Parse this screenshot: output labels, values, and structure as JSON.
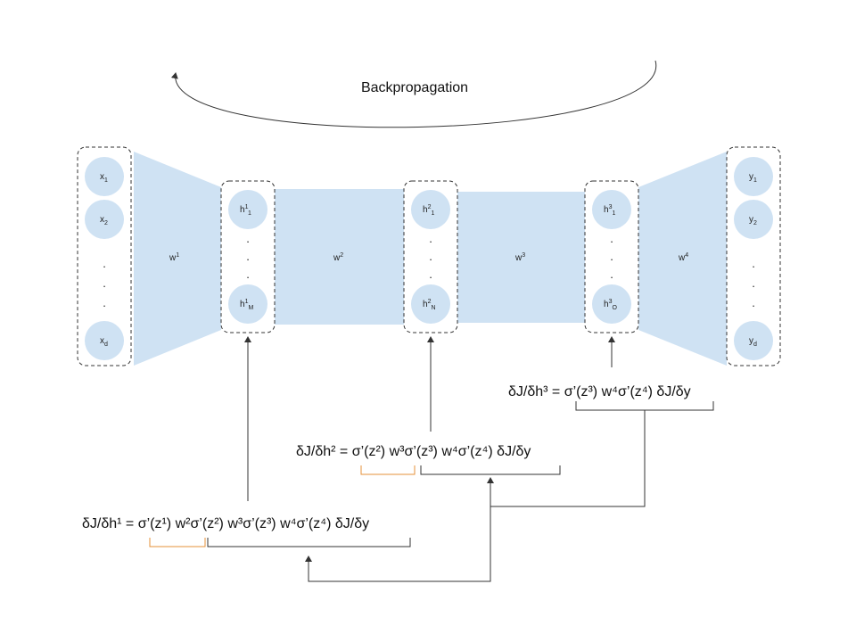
{
  "title": "Backpropagation",
  "colors": {
    "fill": "#cfe2f3",
    "box_border": "#333333",
    "bracket": "#333333",
    "highlight": "#e69138"
  },
  "layers": [
    {
      "nodes": [
        {
          "base": "x",
          "sup": "",
          "sub": "1"
        },
        {
          "base": "x",
          "sup": "",
          "sub": "2"
        },
        {
          "base": "x",
          "sup": "",
          "sub": "d"
        }
      ]
    },
    {
      "nodes": [
        {
          "base": "h",
          "sup": "1",
          "sub": "1"
        },
        {
          "base": "h",
          "sup": "1",
          "sub": "M"
        }
      ]
    },
    {
      "nodes": [
        {
          "base": "h",
          "sup": "2",
          "sub": "1"
        },
        {
          "base": "h",
          "sup": "2",
          "sub": "N"
        }
      ]
    },
    {
      "nodes": [
        {
          "base": "h",
          "sup": "3",
          "sub": "1"
        },
        {
          "base": "h",
          "sup": "3",
          "sub": "O"
        }
      ]
    },
    {
      "nodes": [
        {
          "base": "y",
          "sup": "",
          "sub": "1"
        },
        {
          "base": "y",
          "sup": "",
          "sub": "2"
        },
        {
          "base": "y",
          "sup": "",
          "sub": "d"
        }
      ]
    }
  ],
  "weights": [
    {
      "base": "w",
      "sup": "1"
    },
    {
      "base": "w",
      "sup": "2"
    },
    {
      "base": "w",
      "sup": "3"
    },
    {
      "base": "w",
      "sup": "4"
    }
  ],
  "equations": {
    "eq3": "δJ/δh³ = σ’(z³) w⁴σ’(z⁴) δJ/δy",
    "eq2": "δJ/δh² = σ’(z²) w³σ’(z³) w⁴σ’(z⁴) δJ/δy",
    "eq1": "δJ/δh¹ = σ’(z¹) w²σ’(z²) w³σ’(z³) w⁴σ’(z⁴) δJ/δy"
  }
}
